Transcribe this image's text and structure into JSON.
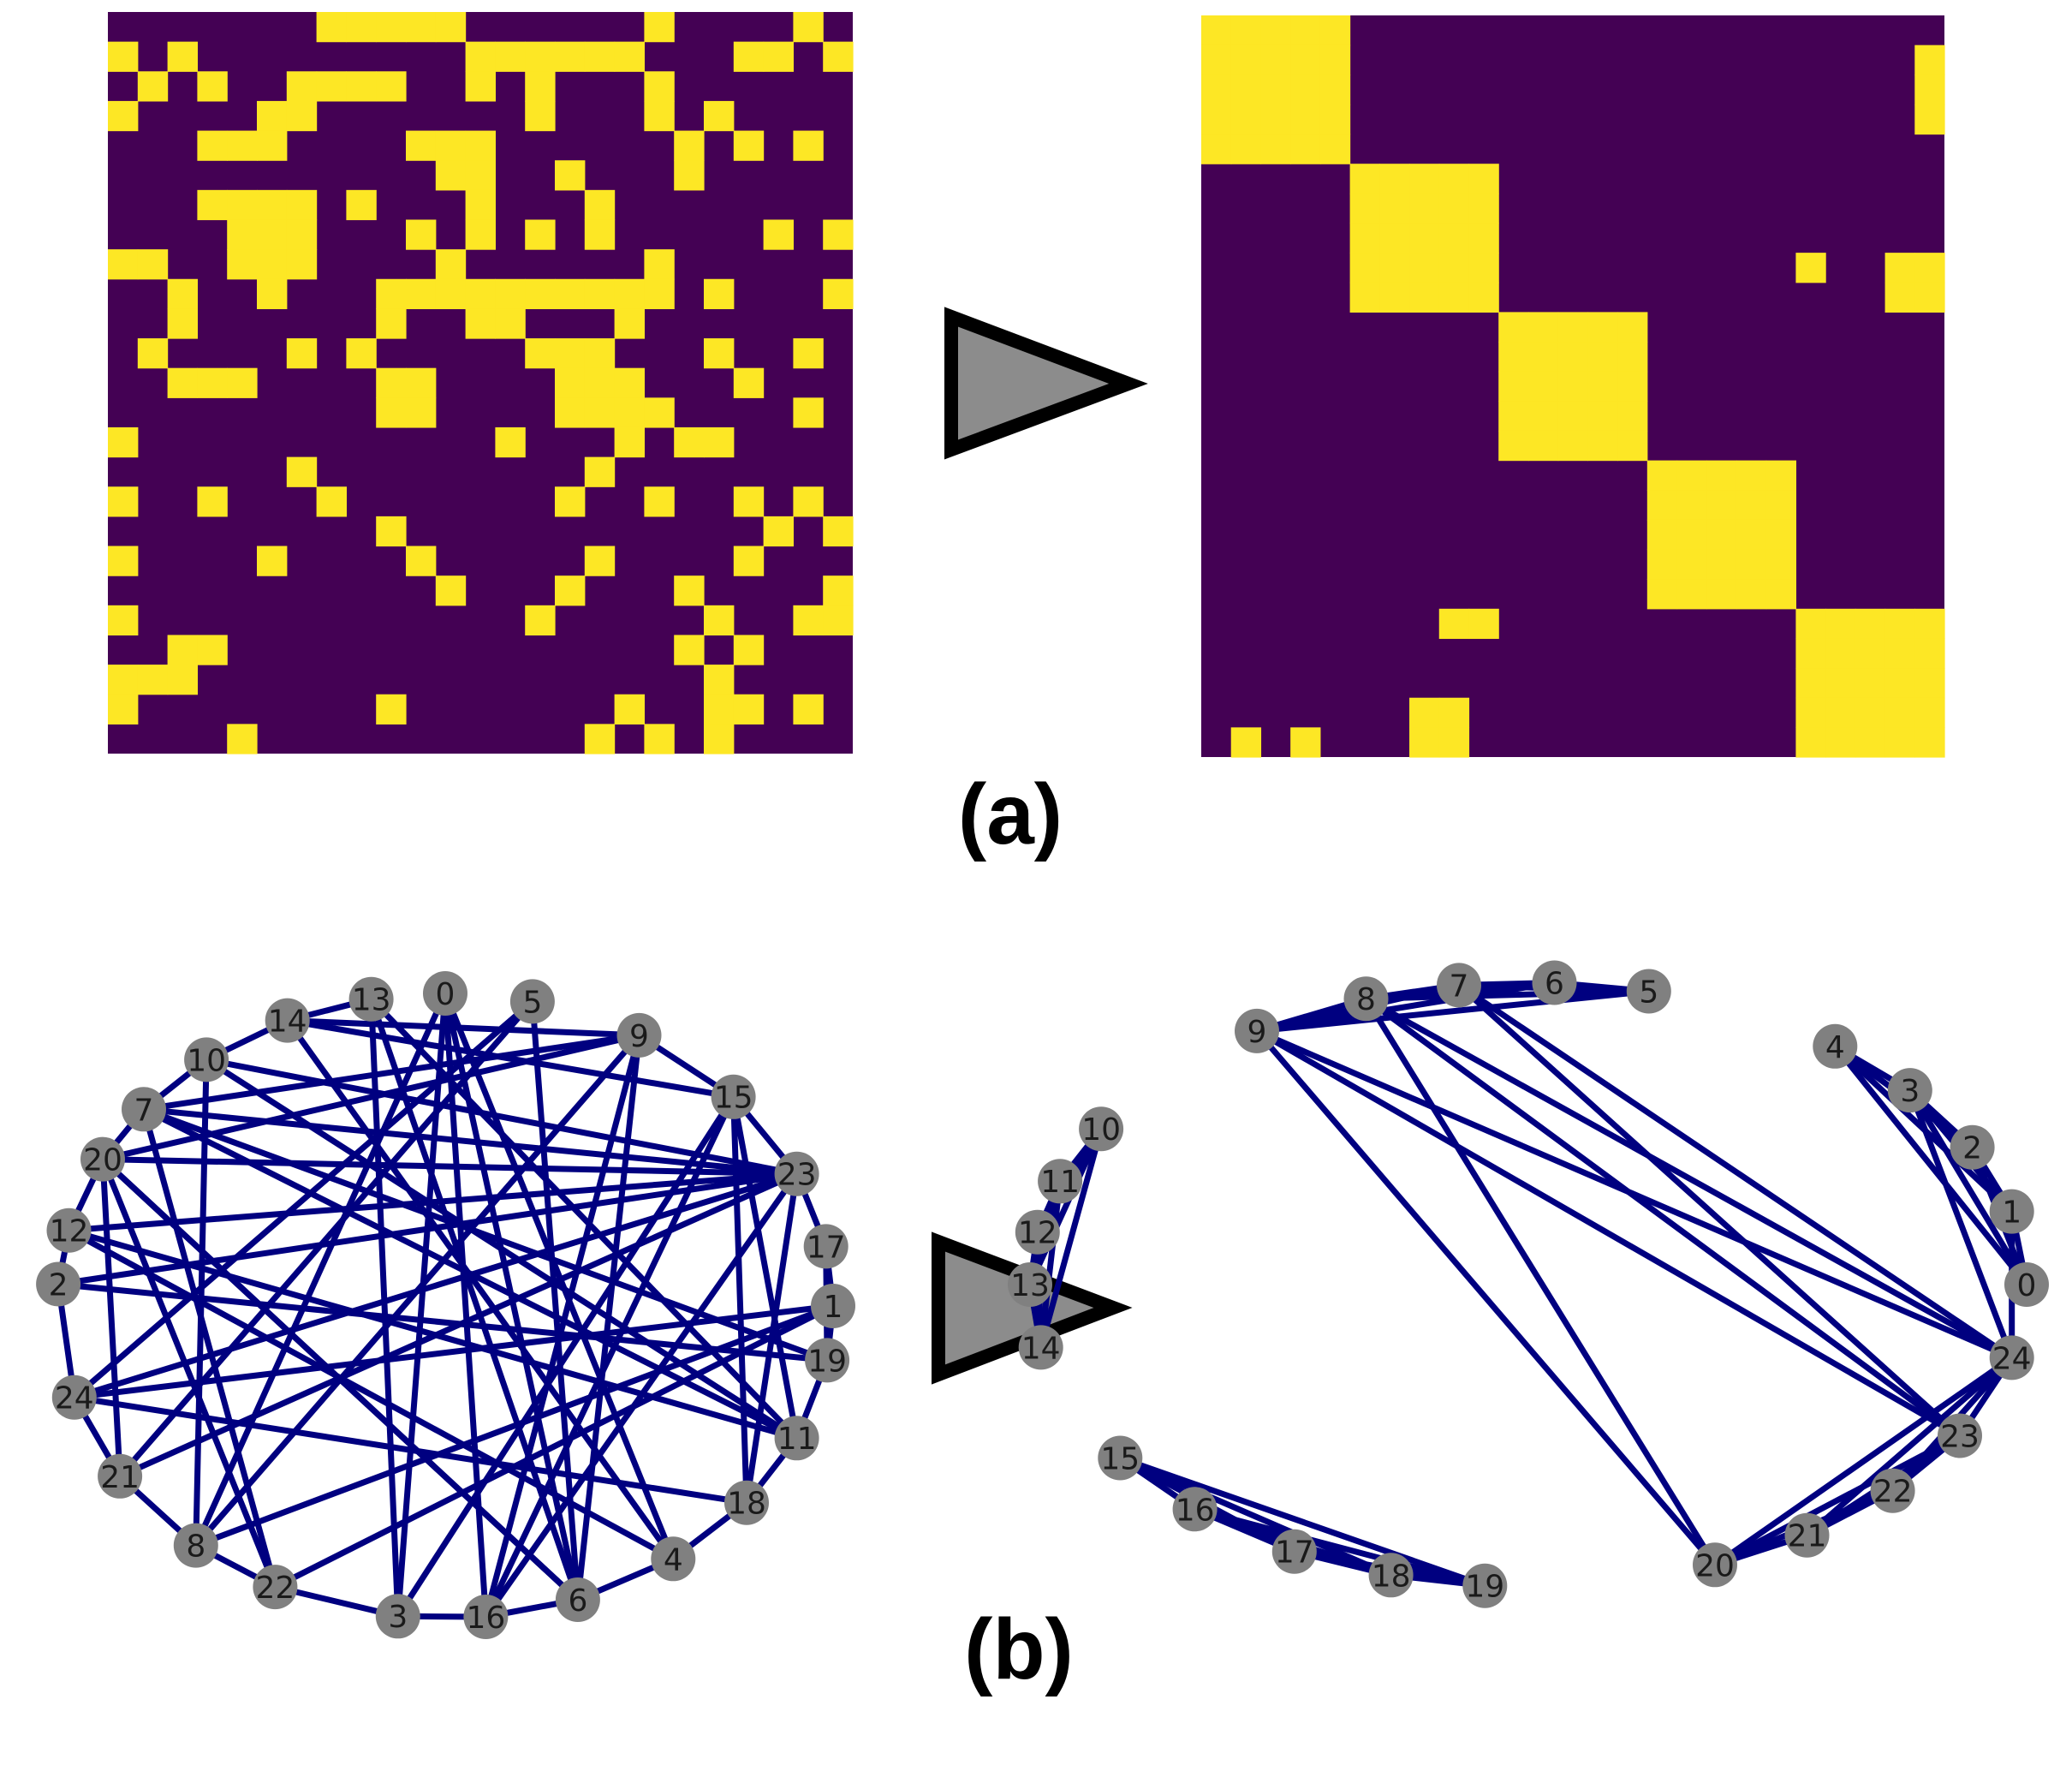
{
  "colors": {
    "matrix_empty": "#440154",
    "matrix_filled": "#fde725",
    "edge": "#000080",
    "node_fill": "#808080",
    "node_label": "#1a1a1a",
    "arrow_fill": "#8c8c8c",
    "arrow_stroke": "#000000",
    "label_color": "#000000"
  },
  "panels": {
    "a": {
      "label": "(a)"
    },
    "b": {
      "label": "(b)"
    }
  },
  "matrices": {
    "size": 25,
    "before": {
      "rows": [
        "0000000111110000001000010",
        "1010000000001111110001101",
        "0101001111001010001000000",
        "1000011000000010001010000",
        "0001110000111000000101010",
        "0000000000011001000100000",
        "0001111010001000100000000",
        "0000111000101010100000101",
        "1100111000010000001000000",
        "0010010001111111111010001",
        "0010000001001100010000000",
        "0100001010000011100010010",
        "0011100001100001110001000",
        "0000000001100001111000010",
        "1000000000000100010110000",
        "0000001000000000100000000",
        "1001000100000001001001010",
        "0000000001000000000000101",
        "1000010000100000100001000",
        "0000000000010001000100001",
        "1000000000000010000010011",
        "0011000000000000000101000",
        "1110000000000000000010000",
        "1000000001000000010011010",
        "0000100000000000101010000"
      ]
    },
    "after": {
      "blocks": [
        {
          "start": 0,
          "end": 4
        },
        {
          "start": 5,
          "end": 9
        },
        {
          "start": 10,
          "end": 14
        },
        {
          "start": 15,
          "end": 19
        },
        {
          "start": 20,
          "end": 24
        }
      ],
      "extra_cells": [
        [
          1,
          24
        ],
        [
          2,
          24
        ],
        [
          3,
          24
        ],
        [
          8,
          20
        ],
        [
          8,
          23
        ],
        [
          8,
          24
        ],
        [
          9,
          23
        ],
        [
          9,
          24
        ],
        [
          20,
          8
        ],
        [
          20,
          9
        ],
        [
          23,
          7
        ],
        [
          23,
          8
        ],
        [
          24,
          7
        ],
        [
          24,
          8
        ],
        [
          24,
          1
        ],
        [
          24,
          3
        ]
      ]
    }
  },
  "graphs": {
    "before": {
      "nodes": [
        {
          "id": "0",
          "angle": 90
        },
        {
          "id": "5",
          "angle": 77
        },
        {
          "id": "9",
          "angle": 60
        },
        {
          "id": "15",
          "angle": 42
        },
        {
          "id": "23",
          "angle": 25
        },
        {
          "id": "17",
          "angle": 11
        },
        {
          "id": "1",
          "angle": 0
        },
        {
          "id": "19",
          "angle": -10
        },
        {
          "id": "11",
          "angle": -25
        },
        {
          "id": "18",
          "angle": -39
        },
        {
          "id": "4",
          "angle": -54
        },
        {
          "id": "6",
          "angle": -70
        },
        {
          "id": "16",
          "angle": -84
        },
        {
          "id": "3",
          "angle": -97
        },
        {
          "id": "22",
          "angle": -116
        },
        {
          "id": "8",
          "angle": -130
        },
        {
          "id": "21",
          "angle": -147
        },
        {
          "id": "24",
          "angle": -163
        },
        {
          "id": "2",
          "angle": 176
        },
        {
          "id": "12",
          "angle": 166
        },
        {
          "id": "20",
          "angle": 152
        },
        {
          "id": "7",
          "angle": 141
        },
        {
          "id": "10",
          "angle": 128
        },
        {
          "id": "14",
          "angle": 114
        },
        {
          "id": "13",
          "angle": 101
        }
      ],
      "edges": [
        [
          "14",
          "13"
        ],
        [
          "14",
          "10"
        ],
        [
          "14",
          "9"
        ],
        [
          "10",
          "7"
        ],
        [
          "7",
          "20"
        ],
        [
          "20",
          "12"
        ],
        [
          "12",
          "2"
        ],
        [
          "2",
          "24"
        ],
        [
          "24",
          "21"
        ],
        [
          "21",
          "8"
        ],
        [
          "8",
          "22"
        ],
        [
          "22",
          "3"
        ],
        [
          "3",
          "16"
        ],
        [
          "16",
          "6"
        ],
        [
          "6",
          "4"
        ],
        [
          "4",
          "18"
        ],
        [
          "18",
          "11"
        ],
        [
          "11",
          "19"
        ],
        [
          "19",
          "1"
        ],
        [
          "1",
          "17"
        ],
        [
          "17",
          "23"
        ],
        [
          "23",
          "15"
        ],
        [
          "15",
          "9"
        ],
        [
          "0",
          "6"
        ],
        [
          "0",
          "16"
        ],
        [
          "0",
          "3"
        ],
        [
          "0",
          "8"
        ],
        [
          "0",
          "4"
        ],
        [
          "5",
          "6"
        ],
        [
          "5",
          "24"
        ],
        [
          "5",
          "21"
        ],
        [
          "9",
          "20"
        ],
        [
          "9",
          "8"
        ],
        [
          "9",
          "16"
        ],
        [
          "9",
          "7"
        ],
        [
          "15",
          "3"
        ],
        [
          "15",
          "18"
        ],
        [
          "15",
          "11"
        ],
        [
          "23",
          "20"
        ],
        [
          "23",
          "24"
        ],
        [
          "23",
          "12"
        ],
        [
          "23",
          "16"
        ],
        [
          "23",
          "7"
        ],
        [
          "17",
          "19"
        ],
        [
          "1",
          "24"
        ],
        [
          "1",
          "22"
        ],
        [
          "19",
          "2"
        ],
        [
          "11",
          "7"
        ],
        [
          "11",
          "10"
        ],
        [
          "11",
          "13"
        ],
        [
          "18",
          "23"
        ],
        [
          "4",
          "12"
        ],
        [
          "4",
          "14"
        ],
        [
          "6",
          "20"
        ],
        [
          "6",
          "9"
        ],
        [
          "16",
          "15"
        ],
        [
          "3",
          "13"
        ],
        [
          "22",
          "7"
        ],
        [
          "22",
          "20"
        ],
        [
          "8",
          "1"
        ],
        [
          "8",
          "10"
        ],
        [
          "21",
          "20"
        ],
        [
          "21",
          "23"
        ],
        [
          "24",
          "18"
        ],
        [
          "2",
          "23"
        ],
        [
          "12",
          "11"
        ],
        [
          "13",
          "6"
        ],
        [
          "7",
          "19"
        ],
        [
          "10",
          "23"
        ],
        [
          "20",
          "6"
        ],
        [
          "14",
          "15"
        ]
      ]
    },
    "after": {
      "nodes": [
        {
          "id": "0",
          "angle": 0
        },
        {
          "id": "1",
          "angle": 14
        },
        {
          "id": "2",
          "angle": 27
        },
        {
          "id": "3",
          "angle": 40
        },
        {
          "id": "4",
          "angle": 52
        },
        {
          "id": "5",
          "angle": 76
        },
        {
          "id": "6",
          "angle": 87
        },
        {
          "id": "7",
          "angle": 98
        },
        {
          "id": "8",
          "angle": 109
        },
        {
          "id": "9",
          "angle": 123
        },
        {
          "id": "10",
          "angle": 149
        },
        {
          "id": "11",
          "angle": 160
        },
        {
          "id": "12",
          "angle": 170
        },
        {
          "id": "13",
          "angle": 180
        },
        {
          "id": "14",
          "angle": -168
        },
        {
          "id": "15",
          "angle": -145
        },
        {
          "id": "16",
          "angle": -132
        },
        {
          "id": "17",
          "angle": -118
        },
        {
          "id": "18",
          "angle": -106
        },
        {
          "id": "19",
          "angle": -95
        },
        {
          "id": "20",
          "angle": -68
        },
        {
          "id": "21",
          "angle": -56
        },
        {
          "id": "22",
          "angle": -43
        },
        {
          "id": "23",
          "angle": -30
        },
        {
          "id": "24",
          "angle": -14
        }
      ],
      "edges": [
        [
          "0",
          "1"
        ],
        [
          "0",
          "2"
        ],
        [
          "0",
          "3"
        ],
        [
          "0",
          "4"
        ],
        [
          "1",
          "2"
        ],
        [
          "1",
          "3"
        ],
        [
          "1",
          "4"
        ],
        [
          "2",
          "3"
        ],
        [
          "2",
          "4"
        ],
        [
          "3",
          "4"
        ],
        [
          "5",
          "6"
        ],
        [
          "5",
          "7"
        ],
        [
          "5",
          "8"
        ],
        [
          "5",
          "9"
        ],
        [
          "6",
          "7"
        ],
        [
          "6",
          "8"
        ],
        [
          "6",
          "9"
        ],
        [
          "7",
          "8"
        ],
        [
          "7",
          "9"
        ],
        [
          "8",
          "9"
        ],
        [
          "10",
          "11"
        ],
        [
          "10",
          "12"
        ],
        [
          "10",
          "13"
        ],
        [
          "10",
          "14"
        ],
        [
          "11",
          "12"
        ],
        [
          "11",
          "13"
        ],
        [
          "11",
          "14"
        ],
        [
          "12",
          "13"
        ],
        [
          "12",
          "14"
        ],
        [
          "13",
          "14"
        ],
        [
          "15",
          "16"
        ],
        [
          "15",
          "17"
        ],
        [
          "15",
          "18"
        ],
        [
          "15",
          "19"
        ],
        [
          "16",
          "17"
        ],
        [
          "16",
          "18"
        ],
        [
          "16",
          "19"
        ],
        [
          "17",
          "18"
        ],
        [
          "17",
          "19"
        ],
        [
          "18",
          "19"
        ],
        [
          "20",
          "21"
        ],
        [
          "20",
          "22"
        ],
        [
          "20",
          "23"
        ],
        [
          "20",
          "24"
        ],
        [
          "21",
          "22"
        ],
        [
          "21",
          "23"
        ],
        [
          "21",
          "24"
        ],
        [
          "22",
          "23"
        ],
        [
          "22",
          "24"
        ],
        [
          "23",
          "24"
        ],
        [
          "8",
          "20"
        ],
        [
          "8",
          "23"
        ],
        [
          "8",
          "24"
        ],
        [
          "9",
          "20"
        ],
        [
          "9",
          "23"
        ],
        [
          "9",
          "24"
        ],
        [
          "7",
          "23"
        ],
        [
          "7",
          "24"
        ],
        [
          "1",
          "24"
        ],
        [
          "3",
          "24"
        ]
      ]
    }
  }
}
